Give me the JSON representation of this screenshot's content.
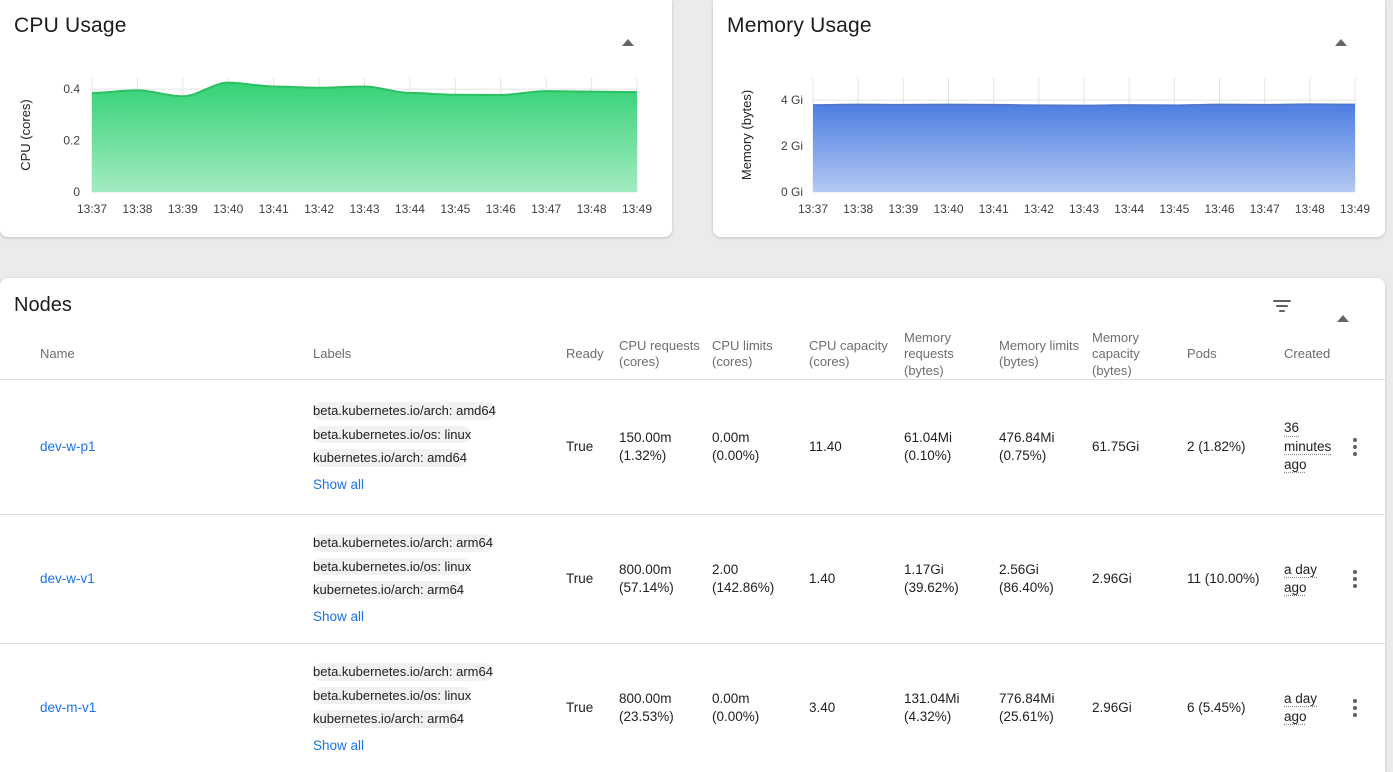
{
  "theme": {
    "link_color": "#1a73e8",
    "status_ok_color": "#148c14",
    "chip_bg": "#f1f1f1"
  },
  "cpu_card": {
    "title": "CPU Usage"
  },
  "memory_card": {
    "title": "Memory Usage"
  },
  "chart_data": [
    {
      "type": "area",
      "title": "CPU Usage",
      "xlabel": "",
      "ylabel": "CPU (cores)",
      "x": [
        "13:37",
        "13:38",
        "13:39",
        "13:40",
        "13:41",
        "13:42",
        "13:43",
        "13:44",
        "13:45",
        "13:46",
        "13:47",
        "13:48",
        "13:49"
      ],
      "values": [
        0.385,
        0.395,
        0.372,
        0.425,
        0.41,
        0.405,
        0.41,
        0.385,
        0.378,
        0.377,
        0.392,
        0.39,
        0.388
      ],
      "yticks": [
        {
          "value": 0,
          "label": "0"
        },
        {
          "value": 0.2,
          "label": "0.2"
        },
        {
          "value": 0.4,
          "label": "0.4"
        }
      ],
      "ylim": [
        0,
        0.443
      ],
      "grid": true,
      "stroke": "#2bc162",
      "fill_top": "#35d276",
      "fill_bottom": "#a3ebc2"
    },
    {
      "type": "area",
      "title": "Memory Usage",
      "xlabel": "",
      "ylabel": "Memory (bytes)",
      "x": [
        "13:37",
        "13:38",
        "13:39",
        "13:40",
        "13:41",
        "13:42",
        "13:43",
        "13:44",
        "13:45",
        "13:46",
        "13:47",
        "13:48",
        "13:49"
      ],
      "values": [
        3.78,
        3.8,
        3.79,
        3.8,
        3.79,
        3.77,
        3.76,
        3.78,
        3.77,
        3.8,
        3.79,
        3.81,
        3.8
      ],
      "values_unit": "Gi",
      "yticks": [
        {
          "value": 0,
          "label": "0 Gi"
        },
        {
          "value": 2,
          "label": "2 Gi"
        },
        {
          "value": 4,
          "label": "4 Gi"
        }
      ],
      "ylim": [
        0,
        4.96
      ],
      "grid": true,
      "stroke": "#5277cf",
      "fill_top": "#4d7ee2",
      "fill_bottom": "#b4c8f2"
    }
  ],
  "nodes": {
    "title": "Nodes",
    "columns": [
      "Name",
      "Labels",
      "Ready",
      "CPU requests (cores)",
      "CPU limits (cores)",
      "CPU capacity (cores)",
      "Memory requests (bytes)",
      "Memory limits (bytes)",
      "Memory capacity (bytes)",
      "Pods",
      "Created"
    ],
    "show_all_label": "Show all",
    "rows": [
      {
        "name": "dev-w-p1",
        "labels": [
          "beta.kubernetes.io/arch: amd64",
          "beta.kubernetes.io/os: linux",
          "kubernetes.io/arch: amd64"
        ],
        "ready": "True",
        "cpu_requests": "150.00m",
        "cpu_requests_pct": "(1.32%)",
        "cpu_limits": "0.00m",
        "cpu_limits_pct": "(0.00%)",
        "cpu_capacity": "11.40",
        "mem_requests": "61.04Mi",
        "mem_requests_pct": "(0.10%)",
        "mem_limits": "476.84Mi",
        "mem_limits_pct": "(0.75%)",
        "mem_capacity": "61.75Gi",
        "pods": "2 (1.82%)",
        "created": "36 minutes ago"
      },
      {
        "name": "dev-w-v1",
        "labels": [
          "beta.kubernetes.io/arch: arm64",
          "beta.kubernetes.io/os: linux",
          "kubernetes.io/arch: arm64"
        ],
        "ready": "True",
        "cpu_requests": "800.00m",
        "cpu_requests_pct": "(57.14%)",
        "cpu_limits": "2.00",
        "cpu_limits_pct": "(142.86%)",
        "cpu_capacity": "1.40",
        "mem_requests": "1.17Gi",
        "mem_requests_pct": "(39.62%)",
        "mem_limits": "2.56Gi",
        "mem_limits_pct": "(86.40%)",
        "mem_capacity": "2.96Gi",
        "pods": "11 (10.00%)",
        "created": "a day ago"
      },
      {
        "name": "dev-m-v1",
        "labels": [
          "beta.kubernetes.io/arch: arm64",
          "beta.kubernetes.io/os: linux",
          "kubernetes.io/arch: arm64"
        ],
        "ready": "True",
        "cpu_requests": "800.00m",
        "cpu_requests_pct": "(23.53%)",
        "cpu_limits": "0.00m",
        "cpu_limits_pct": "(0.00%)",
        "cpu_capacity": "3.40",
        "mem_requests": "131.04Mi",
        "mem_requests_pct": "(4.32%)",
        "mem_limits": "776.84Mi",
        "mem_limits_pct": "(25.61%)",
        "mem_capacity": "2.96Gi",
        "pods": "6 (5.45%)",
        "created": "a day ago"
      }
    ]
  }
}
